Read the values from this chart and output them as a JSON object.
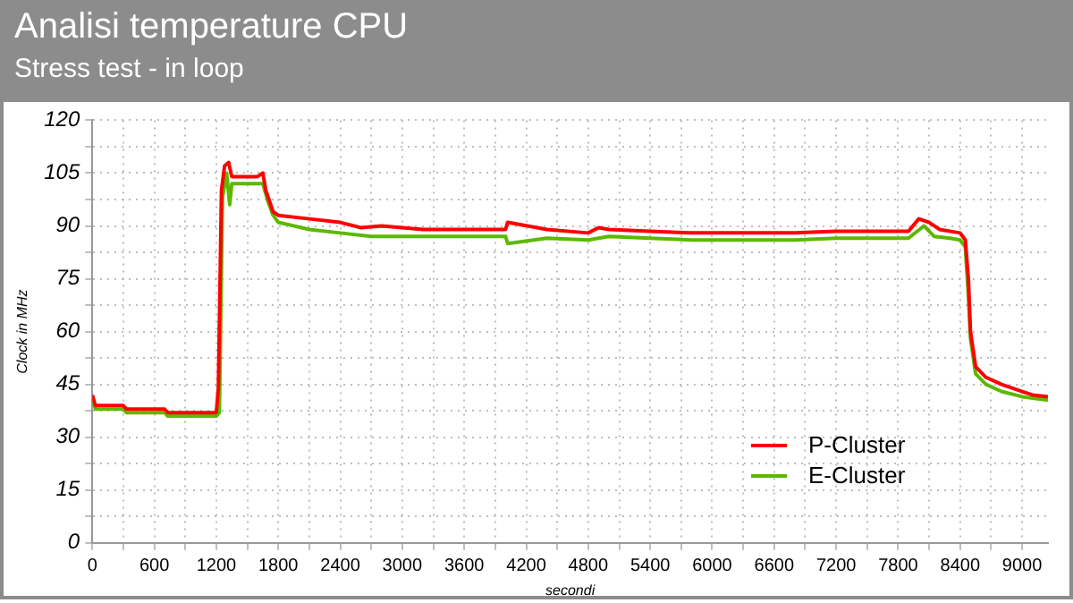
{
  "chart_data": {
    "type": "line",
    "title": "Analisi temperature CPU",
    "subtitle": "Stress test - in loop",
    "xlabel": "secondi",
    "ylabel": "Clock in MHz",
    "xlim": [
      0,
      9250
    ],
    "ylim": [
      0,
      120
    ],
    "xticks": [
      0,
      {
        "value": 300,
        "label": null
      },
      600,
      {
        "value": 900,
        "label": null
      },
      1200,
      {
        "value": 1500,
        "label": null
      },
      1800,
      {
        "value": 2100,
        "label": null
      },
      2400,
      {
        "value": 2700,
        "label": null
      },
      3000,
      {
        "value": 3300,
        "label": null
      },
      3600,
      {
        "value": 3900,
        "label": null
      },
      4200,
      {
        "value": 4500,
        "label": null
      },
      4800,
      {
        "value": 5100,
        "label": null
      },
      5400,
      {
        "value": 5700,
        "label": null
      },
      6000,
      {
        "value": 6300,
        "label": null
      },
      6600,
      {
        "value": 6900,
        "label": null
      },
      7200,
      {
        "value": 7500,
        "label": null
      },
      7800,
      {
        "value": 8100,
        "label": null
      },
      8400,
      {
        "value": 8700,
        "label": null
      },
      9000
    ],
    "yticks": [
      0,
      {
        "value": 7.5,
        "label": null
      },
      15,
      {
        "value": 22.5,
        "label": null
      },
      30,
      {
        "value": 37.5,
        "label": null
      },
      45,
      {
        "value": 52.5,
        "label": null
      },
      60,
      {
        "value": 67.5,
        "label": null
      },
      75,
      {
        "value": 82.5,
        "label": null
      },
      90,
      {
        "value": 97.5,
        "label": null
      },
      105,
      {
        "value": 112.5,
        "label": null
      },
      120
    ],
    "grid": true,
    "legend": "bottom right",
    "series": [
      {
        "name": "P-Cluster",
        "color": "#ff0000",
        "x": [
          0,
          30,
          300,
          330,
          700,
          730,
          1200,
          1220,
          1250,
          1280,
          1320,
          1350,
          1380,
          1600,
          1650,
          1680,
          1750,
          1800,
          2100,
          2400,
          2600,
          2800,
          3200,
          3600,
          4000,
          4020,
          4400,
          4800,
          4900,
          5000,
          5400,
          5800,
          6400,
          6800,
          7200,
          7600,
          7900,
          8000,
          8100,
          8200,
          8400,
          8450,
          8480,
          8500,
          8550,
          8650,
          8800,
          9000,
          9100,
          9250
        ],
        "values": [
          42,
          39,
          39,
          38,
          38,
          37,
          37,
          44,
          100,
          107,
          108,
          104,
          104,
          104,
          105,
          100,
          94,
          93,
          92,
          91,
          89.5,
          90,
          89,
          89,
          89,
          91,
          89,
          88,
          89.5,
          89,
          88.5,
          88,
          88,
          88,
          88.5,
          88.5,
          88.5,
          92,
          91,
          89,
          88,
          86,
          75,
          60,
          50,
          47,
          45,
          43,
          42,
          41.5
        ]
      },
      {
        "name": "E-Cluster",
        "color": "#5cb800",
        "x": [
          0,
          30,
          300,
          330,
          700,
          730,
          1200,
          1230,
          1260,
          1300,
          1330,
          1350,
          1380,
          1600,
          1650,
          1700,
          1750,
          1800,
          2100,
          2400,
          2700,
          3200,
          3600,
          4000,
          4020,
          4400,
          4800,
          5000,
          5400,
          5800,
          6400,
          6800,
          7200,
          7600,
          7900,
          8050,
          8150,
          8300,
          8400,
          8450,
          8480,
          8500,
          8550,
          8650,
          8800,
          9000,
          9250
        ],
        "values": [
          41,
          38,
          38,
          37,
          37,
          36,
          36,
          37,
          98,
          105,
          96,
          102,
          102,
          102,
          102,
          97,
          93,
          91,
          89,
          88,
          87,
          87,
          87,
          87,
          85,
          86.5,
          86,
          87,
          86.5,
          86,
          86,
          86,
          86.5,
          86.5,
          86.5,
          90,
          87,
          86.5,
          86,
          84,
          70,
          58,
          48,
          45,
          43,
          41.5,
          40.5
        ]
      }
    ]
  }
}
